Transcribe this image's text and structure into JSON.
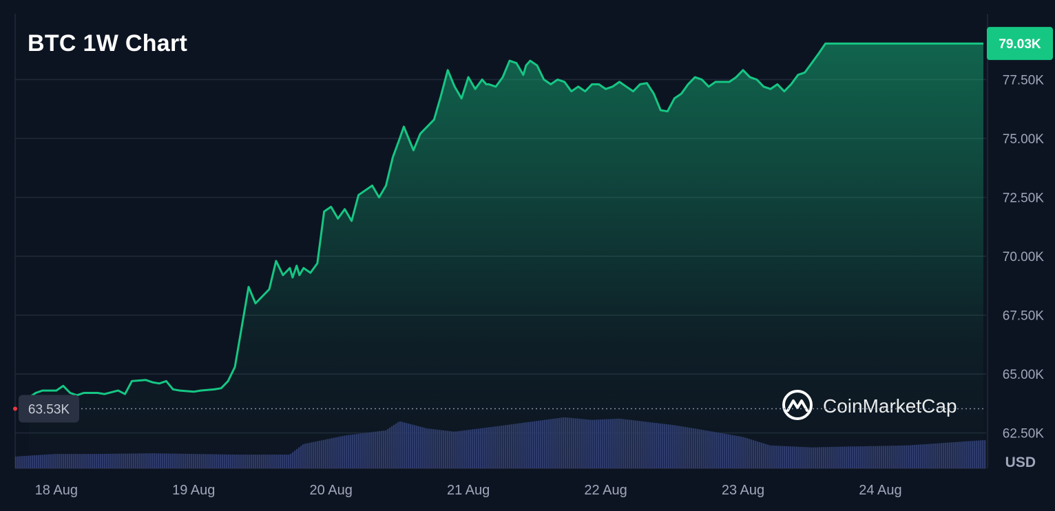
{
  "chart_data": {
    "type": "area",
    "title": "BTC 1W Chart",
    "currency": "USD",
    "y_unit_label": "USD",
    "ylim": [
      61000,
      80000
    ],
    "y_ticks": [
      {
        "value": 62500,
        "label": "62.50K"
      },
      {
        "value": 65000,
        "label": "65.00K"
      },
      {
        "value": 67500,
        "label": "67.50K"
      },
      {
        "value": 70000,
        "label": "70.00K"
      },
      {
        "value": 72500,
        "label": "72.50K"
      },
      {
        "value": 75000,
        "label": "75.00K"
      },
      {
        "value": 77500,
        "label": "77.50K"
      }
    ],
    "x_ticks": [
      {
        "value": 0.3,
        "label": "18 Aug"
      },
      {
        "value": 1.3,
        "label": "19 Aug"
      },
      {
        "value": 2.3,
        "label": "20 Aug"
      },
      {
        "value": 3.3,
        "label": "21 Aug"
      },
      {
        "value": 4.3,
        "label": "22 Aug"
      },
      {
        "value": 5.3,
        "label": "23 Aug"
      },
      {
        "value": 6.3,
        "label": "24 Aug"
      }
    ],
    "xlim": [
      0,
      7.07
    ],
    "open_price": {
      "value": 63530,
      "label": "63.53K"
    },
    "last_price": {
      "value": 79030,
      "label": "79.03K"
    },
    "grid": true,
    "series": [
      {
        "x": [
          0.1,
          0.15,
          0.2,
          0.3,
          0.35,
          0.4,
          0.45,
          0.5,
          0.6,
          0.65,
          0.75,
          0.8,
          0.85,
          0.95,
          1.0,
          1.05,
          1.1,
          1.15,
          1.2,
          1.3,
          1.35,
          1.45,
          1.5,
          1.55,
          1.6,
          1.7,
          1.75,
          1.85,
          1.9,
          1.95,
          2.0,
          2.02,
          2.05,
          2.07,
          2.1,
          2.15,
          2.2,
          2.25,
          2.3,
          2.35,
          2.4,
          2.45,
          2.5,
          2.55,
          2.6,
          2.65,
          2.7,
          2.75,
          2.8,
          2.83,
          2.9,
          2.95,
          3.0,
          3.05,
          3.1,
          3.15,
          3.2,
          3.25,
          3.3,
          3.35,
          3.4,
          3.43,
          3.45,
          3.5,
          3.55,
          3.6,
          3.65,
          3.7,
          3.72,
          3.75,
          3.8,
          3.85,
          3.9,
          3.95,
          4.0,
          4.05,
          4.1,
          4.15,
          4.2,
          4.25,
          4.3,
          4.35,
          4.4,
          4.45,
          4.5,
          4.55,
          4.6,
          4.65,
          4.7,
          4.75,
          4.8,
          4.85,
          4.9,
          4.95,
          5.0,
          5.05,
          5.1,
          5.15,
          5.2,
          5.25,
          5.3,
          5.35,
          5.4,
          5.45,
          5.5,
          5.55,
          5.6,
          5.65,
          5.7,
          5.75,
          5.8,
          5.85,
          5.9,
          5.95,
          6.0,
          6.05,
          6.1,
          6.15,
          6.2,
          6.25,
          6.3,
          6.35,
          6.4,
          6.45,
          6.5,
          6.55,
          6.6,
          6.65,
          6.7,
          6.75,
          6.8,
          6.85,
          6.9,
          6.95,
          7.0,
          7.03,
          7.05
        ],
        "y": [
          64000,
          64200,
          64300,
          64300,
          64500,
          64200,
          64100,
          64200,
          64200,
          64150,
          64300,
          64150,
          64700,
          64750,
          64650,
          64600,
          64700,
          64350,
          64300,
          64250,
          64300,
          64350,
          64400,
          64700,
          65300,
          68700,
          68000,
          68600,
          69800,
          69200,
          69500,
          69100,
          69600,
          69200,
          69500,
          69300,
          69700,
          71900,
          72100,
          71600,
          72000,
          71500,
          72600,
          72800,
          73000,
          72500,
          73000,
          74200,
          75000,
          75500,
          74500,
          75200,
          75500,
          75800,
          76800,
          77900,
          77200,
          76700,
          77600,
          77100,
          77500,
          77300,
          77300,
          77200,
          77600,
          78300,
          78200,
          77700,
          78100,
          78300,
          78100,
          77500,
          77300,
          77500,
          77400,
          77000,
          77200,
          77000,
          77300,
          77300,
          77100,
          77200,
          77400,
          77200,
          77000,
          77300,
          77350,
          76900,
          76200,
          76150,
          76700,
          76900,
          77300,
          77600,
          77500,
          77200,
          77400,
          77400,
          77400,
          77600,
          77900,
          77600,
          77500,
          77200,
          77100,
          77300,
          77000,
          77300,
          77700,
          77800,
          78200,
          78600,
          79030,
          79030,
          79030,
          79030,
          79030,
          79030,
          79030,
          79030,
          79030,
          79030,
          79030,
          79030,
          79030,
          79030,
          79030,
          79030,
          79030,
          79030,
          79030,
          79030,
          79030,
          79030,
          79030,
          79030,
          79030
        ],
        "line_color": "#16c784"
      }
    ],
    "volume": {
      "x": [
        0.0,
        0.3,
        0.6,
        1.0,
        1.3,
        1.6,
        2.0,
        2.1,
        2.4,
        2.7,
        2.8,
        3.0,
        3.2,
        3.5,
        4.0,
        4.2,
        4.4,
        4.6,
        4.8,
        5.0,
        5.3,
        5.5,
        5.8,
        6.0,
        6.5,
        7.05
      ],
      "v": [
        0.18,
        0.22,
        0.22,
        0.23,
        0.22,
        0.21,
        0.21,
        0.37,
        0.5,
        0.58,
        0.72,
        0.61,
        0.56,
        0.64,
        0.78,
        0.74,
        0.76,
        0.71,
        0.66,
        0.59,
        0.48,
        0.35,
        0.32,
        0.33,
        0.35,
        0.43
      ],
      "color": "#2e3a6b"
    },
    "watermark": "CoinMarketCap",
    "colors": {
      "background": "#0d1421",
      "line": "#16c784",
      "badge": "#16c784",
      "grid": "#222a3a",
      "axis_text": "#a1a7bb"
    }
  }
}
